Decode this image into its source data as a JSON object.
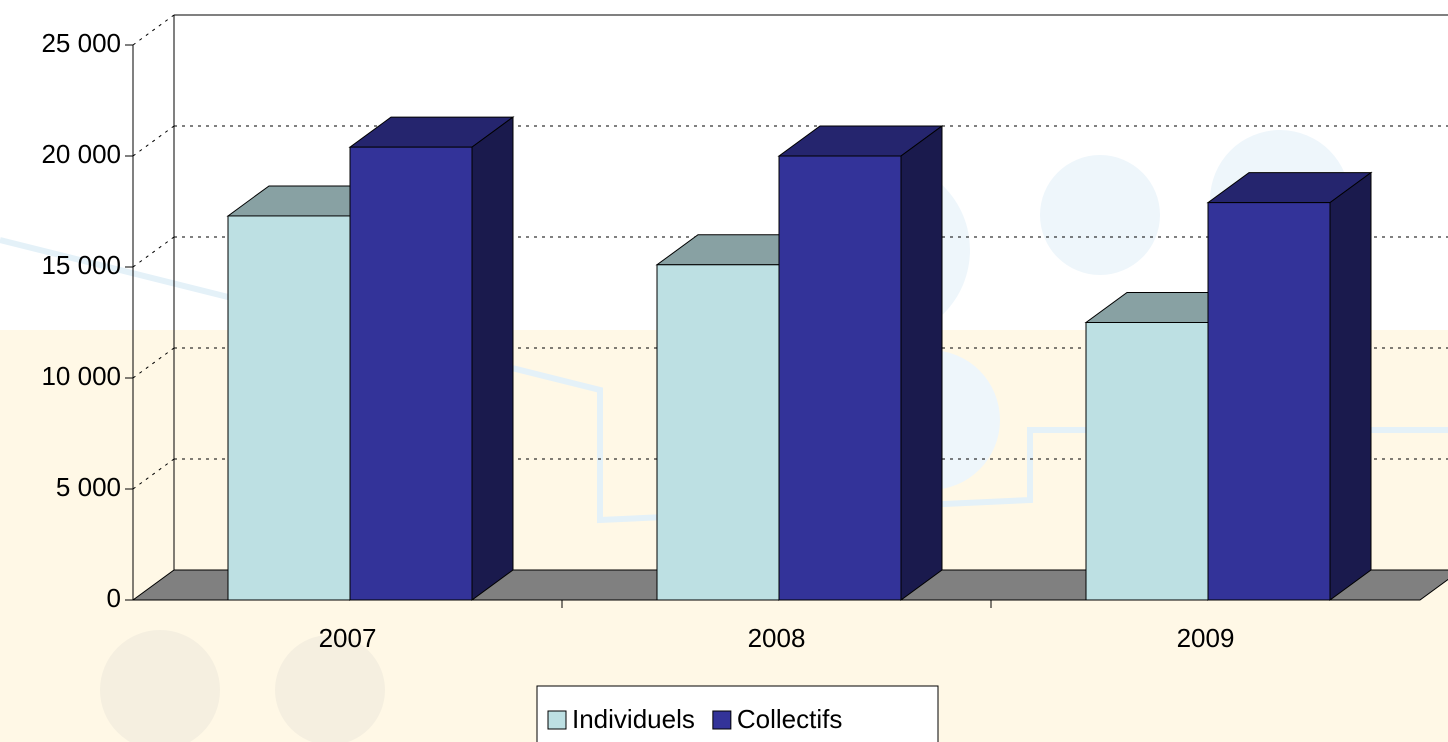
{
  "chart_data": {
    "type": "bar3d",
    "categories": [
      "2007",
      "2008",
      "2009"
    ],
    "series": [
      {
        "name": "Individuels",
        "color": "#bde0e3",
        "values": [
          17300,
          15100,
          12500
        ]
      },
      {
        "name": "Collectifs",
        "color": "#333399",
        "values": [
          20400,
          20000,
          17900
        ]
      }
    ],
    "ylim": [
      0,
      25000
    ],
    "yticks": [
      0,
      {
        "value": 5000,
        "label": "5 000"
      },
      {
        "value": 10000,
        "label": "10 000"
      },
      {
        "value": 15000,
        "label": "15 000"
      },
      {
        "value": 20000,
        "label": "20 000"
      },
      {
        "value": 25000,
        "label": "25 000"
      }
    ],
    "grid": true,
    "legend": "bottom"
  }
}
